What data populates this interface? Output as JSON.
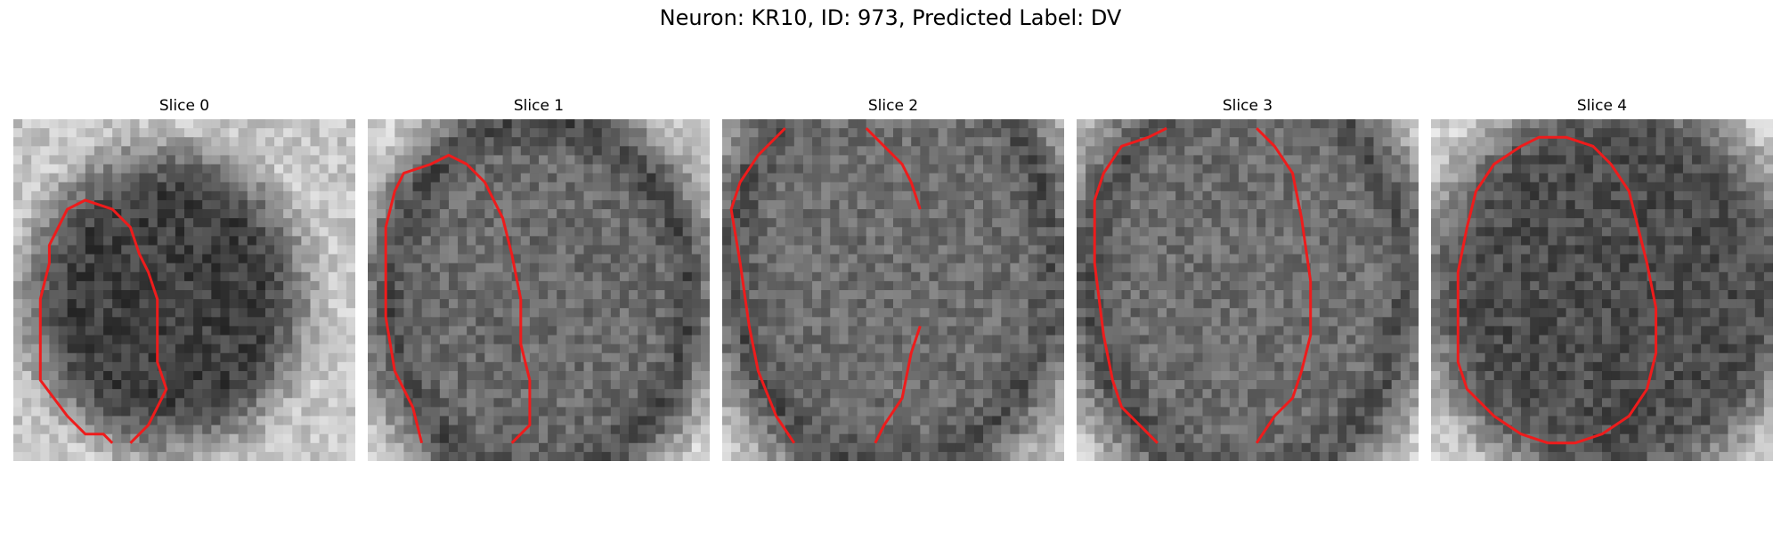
{
  "figure": {
    "title": "Neuron: KR10, ID: 973, Predicted Label: DV"
  },
  "slices": [
    {
      "title": "Slice 0",
      "contour": [
        [
          6,
          33
        ],
        [
          8,
          35
        ],
        [
          10,
          35
        ],
        [
          11,
          36
        ]
      ],
      "contour_b": [
        [
          13,
          36
        ],
        [
          15,
          34
        ],
        [
          16,
          32
        ],
        [
          17,
          30
        ],
        [
          16,
          27
        ],
        [
          16,
          20
        ],
        [
          15,
          17
        ],
        [
          14,
          15
        ],
        [
          13,
          12
        ],
        [
          11,
          10
        ],
        [
          8,
          9
        ],
        [
          6,
          10
        ],
        [
          5,
          12
        ],
        [
          4,
          14
        ],
        [
          4,
          16
        ],
        [
          3,
          20
        ],
        [
          3,
          24
        ],
        [
          3,
          29
        ],
        [
          6,
          33
        ]
      ]
    },
    {
      "title": "Slice 1",
      "contour": [
        [
          16,
          36
        ],
        [
          18,
          34
        ],
        [
          18,
          29
        ],
        [
          17,
          25
        ],
        [
          17,
          20
        ],
        [
          16,
          15
        ],
        [
          15,
          11
        ],
        [
          13,
          7
        ],
        [
          11,
          5
        ],
        [
          9,
          4
        ],
        [
          7,
          5
        ],
        [
          4,
          6
        ],
        [
          3,
          8
        ],
        [
          2,
          12
        ],
        [
          2,
          17
        ],
        [
          2,
          22
        ],
        [
          3,
          28
        ],
        [
          5,
          32
        ],
        [
          6,
          36
        ]
      ]
    },
    {
      "title": "Slice 2",
      "contour": [
        [
          7,
          1
        ],
        [
          4,
          4
        ],
        [
          2,
          7
        ],
        [
          1,
          10
        ],
        [
          2,
          16
        ],
        [
          3,
          23
        ],
        [
          4,
          28
        ],
        [
          6,
          33
        ],
        [
          8,
          36
        ]
      ],
      "contour_b": [
        [
          16,
          1
        ],
        [
          18,
          3
        ],
        [
          20,
          5
        ],
        [
          21,
          7
        ],
        [
          22,
          10
        ]
      ],
      "contour_c": [
        [
          22,
          23
        ],
        [
          21,
          26
        ],
        [
          20,
          31
        ],
        [
          18,
          34
        ],
        [
          17,
          36
        ]
      ]
    },
    {
      "title": "Slice 3",
      "contour": [
        [
          10,
          1
        ],
        [
          8,
          2
        ],
        [
          5,
          3
        ],
        [
          3,
          6
        ],
        [
          2,
          9
        ],
        [
          2,
          16
        ],
        [
          3,
          24
        ],
        [
          4,
          29
        ],
        [
          5,
          32
        ],
        [
          7,
          34
        ],
        [
          9,
          36
        ]
      ],
      "contour_b": [
        [
          20,
          1
        ],
        [
          22,
          3
        ],
        [
          24,
          6
        ],
        [
          25,
          11
        ],
        [
          26,
          18
        ],
        [
          26,
          24
        ],
        [
          25,
          28
        ],
        [
          24,
          31
        ],
        [
          22,
          33
        ],
        [
          20,
          36
        ]
      ]
    },
    {
      "title": "Slice 4",
      "contour": [
        [
          13,
          36
        ],
        [
          10,
          35
        ],
        [
          7,
          33
        ],
        [
          4,
          30
        ],
        [
          3,
          27
        ],
        [
          3,
          22
        ],
        [
          3,
          17
        ],
        [
          4,
          12
        ],
        [
          5,
          8
        ],
        [
          7,
          5
        ],
        [
          10,
          3
        ],
        [
          12,
          2
        ],
        [
          15,
          2
        ],
        [
          18,
          3
        ],
        [
          20,
          5
        ],
        [
          22,
          8
        ],
        [
          23,
          12
        ],
        [
          24,
          16
        ],
        [
          25,
          21
        ],
        [
          25,
          26
        ],
        [
          24,
          30
        ],
        [
          22,
          33
        ],
        [
          19,
          35
        ],
        [
          16,
          36
        ],
        [
          13,
          36
        ]
      ]
    }
  ]
}
